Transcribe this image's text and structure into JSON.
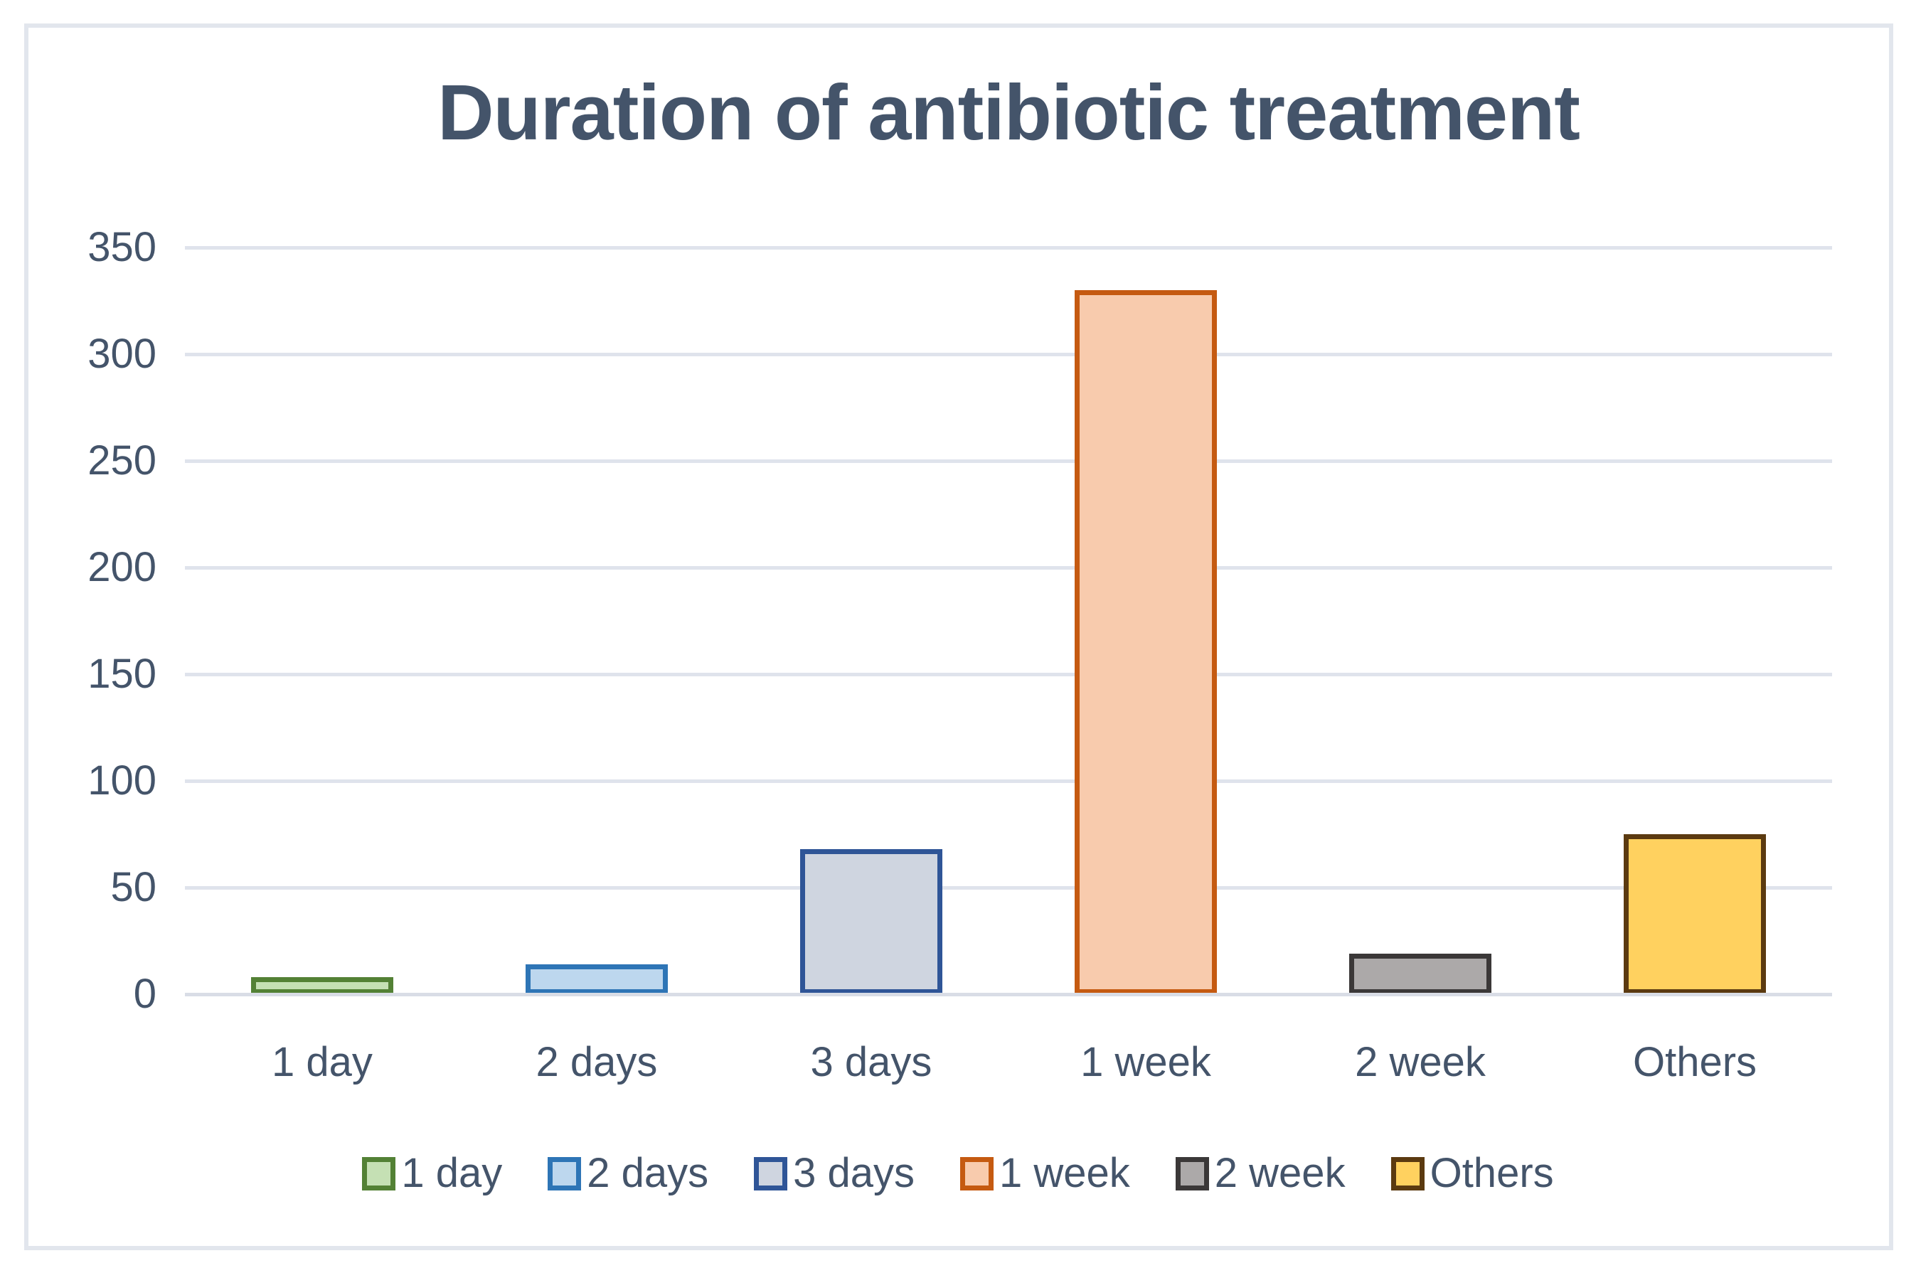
{
  "chart_data": {
    "type": "bar",
    "title": "Duration of antibiotic treatment",
    "categories": [
      "1 day",
      "2 days",
      "3 days",
      "1 week",
      "2 week",
      "Others"
    ],
    "values": [
      8,
      14,
      68,
      330,
      19,
      75
    ],
    "bar_colors": [
      {
        "name": "1 day",
        "fill": "#C5E0B4",
        "border": "#538135"
      },
      {
        "name": "2 days",
        "fill": "#BDD7EE",
        "border": "#2E75B6"
      },
      {
        "name": "3 days",
        "fill": "#CFD5E0",
        "border": "#2F5597"
      },
      {
        "name": "1 week",
        "fill": "#F8CBAD",
        "border": "#C55A11"
      },
      {
        "name": "2 week",
        "fill": "#ACA9A9",
        "border": "#3B3838"
      },
      {
        "name": "Others",
        "fill": "#FFD15F",
        "border": "#5B3A10"
      }
    ],
    "xlabel": "",
    "ylabel": "",
    "ylim": [
      0,
      350
    ],
    "ytick_step": 50,
    "yticks": [
      0,
      50,
      100,
      150,
      200,
      250,
      300,
      350
    ],
    "grid": true,
    "legend_position": "bottom",
    "legend_entries": [
      "1 day",
      "2 days",
      "3 days",
      "1 week",
      "2 week",
      "Others"
    ],
    "text_color": "#44546A",
    "gridline_color": "#dfe3ec",
    "axis_line_color": "#d9dde6",
    "frame_border_color": "#e2e6ed",
    "background_color": "#ffffff"
  }
}
